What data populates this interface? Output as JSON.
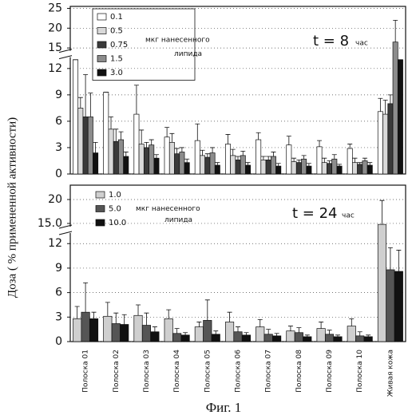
{
  "chart_data": [
    {
      "type": "bar",
      "annotation": "t = 8",
      "annotation_unit": "час",
      "y_label": "Доза ( % примененной активности)",
      "legend_note": [
        "мкг нанесенного",
        "липида"
      ],
      "ylim": [
        0,
        25.5
      ],
      "ybreak": [
        13.2,
        14.5
      ],
      "yticks": [
        0,
        3,
        6,
        9,
        12,
        15,
        20,
        25
      ],
      "grid": true,
      "series": [
        {
          "name": "0.1",
          "color": "#ffffff",
          "values": [
            13,
            9.3,
            6.8,
            4.2,
            3.8,
            3.4,
            3.9,
            3.3,
            3.1,
            2.9,
            7.1
          ],
          "errors": [
            0,
            0,
            3.3,
            1.1,
            1.9,
            1.1,
            0.8,
            1.0,
            0.7,
            0.5,
            1.5
          ]
        },
        {
          "name": "0.5",
          "color": "#d9d9d9",
          "values": [
            7.5,
            5.1,
            3.4,
            3.6,
            2.1,
            2.1,
            1.6,
            1.4,
            1.3,
            1.3,
            6.8
          ],
          "errors": [
            1.2,
            1.4,
            1.6,
            1.0,
            0.6,
            0.7,
            0.4,
            0.4,
            0.5,
            0.5,
            1.6
          ]
        },
        {
          "name": "0.75",
          "color": "#3a3a3a",
          "values": [
            6.5,
            3.7,
            3.0,
            2.3,
            1.9,
            1.6,
            1.6,
            1.3,
            1.2,
            1.1,
            8.0
          ],
          "errors": [
            4.8,
            1.4,
            0.6,
            0.6,
            0.4,
            0.4,
            0.4,
            0.3,
            0.3,
            0.2,
            1.0
          ]
        },
        {
          "name": "1.5",
          "color": "#8c8c8c",
          "values": [
            6.5,
            3.9,
            3.3,
            2.5,
            2.4,
            2.1,
            2.0,
            1.7,
            1.7,
            1.5,
            16.5
          ],
          "errors": [
            2.7,
            0.9,
            0.6,
            0.5,
            0.6,
            0.5,
            0.5,
            0.4,
            0.5,
            0.3,
            5.5
          ]
        },
        {
          "name": "3.0",
          "color": "#111111",
          "values": [
            2.4,
            2.0,
            1.8,
            1.3,
            1.0,
            1.0,
            0.9,
            0.9,
            0.9,
            1.0,
            13.0
          ],
          "errors": [
            1.2,
            0.5,
            0.4,
            0.4,
            0.3,
            0.3,
            0.3,
            0.3,
            0.2,
            0.3,
            0
          ]
        }
      ]
    },
    {
      "type": "bar",
      "annotation": "t = 24",
      "annotation_unit": "час",
      "legend_note": [
        "мкг нанесенного",
        "липида"
      ],
      "categories": [
        "Полоска 01",
        "Полоска 02",
        "Полоска 03",
        "Полоска 04",
        "Полоска 05",
        "Полоска 06",
        "Полоска 07",
        "Полоска 08",
        "Полоска 09",
        "Полоска 10",
        "Живая кожа"
      ],
      "ylim": [
        0,
        23
      ],
      "ybreak": [
        13.2,
        14.5
      ],
      "yticks": [
        0,
        3,
        6,
        9,
        12,
        {
          "value": 15,
          "label": "15.0"
        },
        20
      ],
      "grid": true,
      "series": [
        {
          "name": "1.0",
          "color": "#cfcfcf",
          "values": [
            2.8,
            3.1,
            3.2,
            2.8,
            1.8,
            2.4,
            1.8,
            1.3,
            1.6,
            1.9,
            14.8
          ],
          "errors": [
            1.5,
            1.7,
            1.3,
            1.1,
            0.6,
            1.2,
            0.9,
            0.6,
            0.8,
            0.9,
            5
          ]
        },
        {
          "name": "5.0",
          "color": "#555555",
          "values": [
            3.6,
            2.2,
            2.0,
            1.0,
            2.6,
            1.2,
            0.9,
            1.1,
            0.9,
            0.7,
            8.8
          ],
          "errors": [
            3.6,
            1.3,
            1.5,
            0.6,
            2.5,
            0.6,
            0.6,
            0.6,
            0.5,
            0.5,
            2.7
          ]
        },
        {
          "name": "10.0",
          "color": "#111111",
          "values": [
            2.8,
            2.1,
            1.2,
            0.8,
            0.9,
            0.8,
            0.7,
            0.6,
            0.6,
            0.6,
            8.6
          ],
          "errors": [
            0.8,
            1.2,
            0.6,
            0.3,
            0.4,
            0.3,
            0.3,
            0.2,
            0.2,
            0.2,
            2.6
          ]
        }
      ]
    }
  ],
  "caption": "Фиг. 1"
}
